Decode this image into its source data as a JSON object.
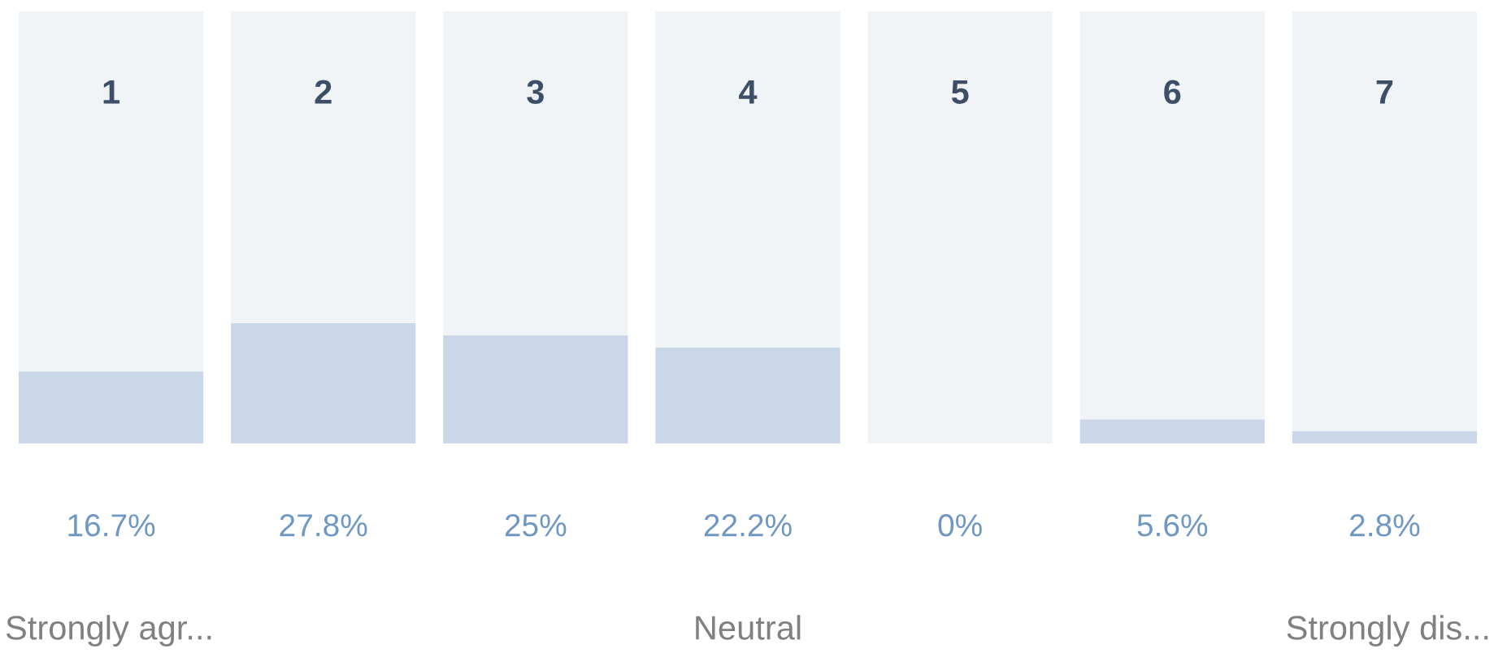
{
  "chart_data": {
    "type": "bar",
    "stacked": true,
    "categories": [
      "1",
      "2",
      "3",
      "4",
      "5",
      "6",
      "7"
    ],
    "series": [
      {
        "color": "#c9d7e8",
        "values": [
          16.7,
          27.8,
          25,
          22.2,
          0,
          5.6,
          2.8
        ],
        "value_labels": [
          "16.7%",
          "27.8%",
          "25%",
          "22.2%",
          "0%",
          "5.6%",
          "2.8%"
        ]
      },
      {
        "color": "#f0f4f6",
        "values": [
          83.3,
          72.2,
          75,
          77.8,
          100,
          94.4,
          97.2
        ]
      }
    ],
    "ylim": [
      0,
      100
    ],
    "annotations": [
      "Strongly agr...",
      "Neutral",
      "Strongly dis..."
    ]
  }
}
